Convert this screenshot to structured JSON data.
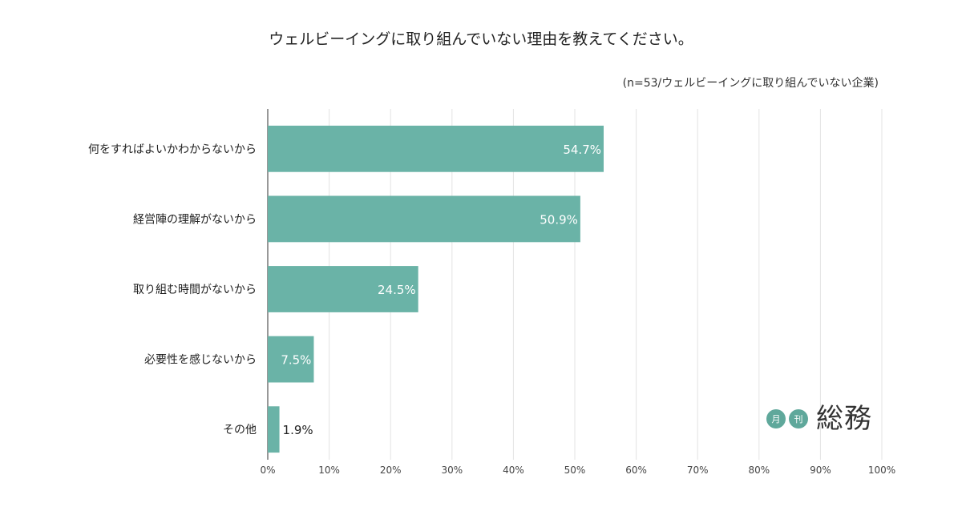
{
  "chart_data": {
    "type": "bar",
    "orientation": "horizontal",
    "title": "ウェルビーイングに取り組んでいない理由を教えてください。",
    "subtitle": "(n=53/ウェルビーイングに取り組んでいない企業)",
    "categories": [
      "何をすればよいかわからないから",
      "経営陣の理解がないから",
      "取り組む時間がないから",
      "必要性を感じないから",
      "その他"
    ],
    "values": [
      54.7,
      50.9,
      24.5,
      7.5,
      1.9
    ],
    "value_labels": [
      "54.7%",
      "50.9%",
      "24.5%",
      "7.5%",
      "1.9%"
    ],
    "xlim": [
      0,
      100
    ],
    "x_ticks": [
      "0%",
      "10%",
      "20%",
      "30%",
      "40%",
      "50%",
      "60%",
      "70%",
      "80%",
      "90%",
      "100%"
    ],
    "grid": true,
    "bar_color": "#6ab3a7"
  },
  "logo": {
    "dot1": "月",
    "dot2": "刊",
    "text": "総務"
  }
}
